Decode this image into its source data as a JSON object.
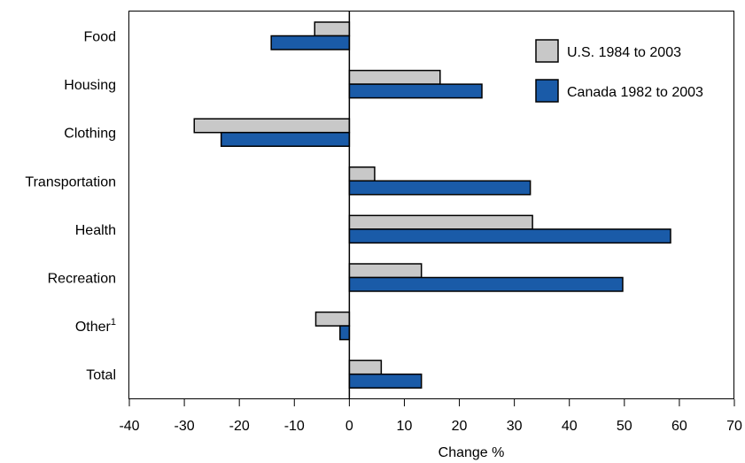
{
  "chart_data": {
    "type": "bar",
    "orientation": "horizontal",
    "categories": [
      "Food",
      "Housing",
      "Clothing",
      "Transportation",
      "Health",
      "Recreation",
      "Other",
      "Total"
    ],
    "category_superscripts": {
      "Other": "1"
    },
    "series": [
      {
        "name": "U.S. 1984 to 2003",
        "color": "#c8c8c8",
        "values": [
          -6.3,
          16.5,
          -28.2,
          4.6,
          33.3,
          13.1,
          -6.1,
          5.8
        ]
      },
      {
        "name": "Canada 1982 to 2003",
        "color": "#1a5ba8",
        "values": [
          -14.2,
          24.1,
          -23.3,
          32.9,
          58.4,
          49.7,
          -1.7,
          13.1
        ]
      }
    ],
    "xlabel": "Change %",
    "xlim": [
      -40,
      70
    ],
    "xticks": [
      -40,
      -30,
      -20,
      -10,
      0,
      10,
      20,
      30,
      40,
      50,
      60,
      70
    ],
    "grid": false,
    "legend_position": "top-right"
  }
}
